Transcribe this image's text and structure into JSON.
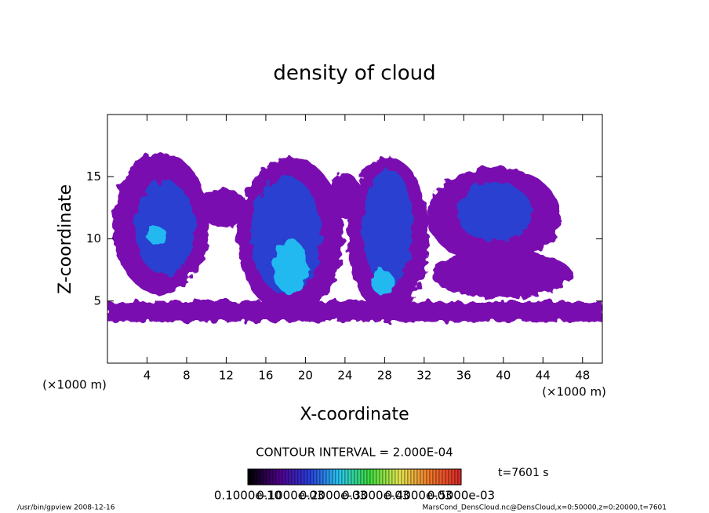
{
  "chart_data": {
    "type": "contour",
    "title": "density of cloud",
    "x_label": "X-coordinate",
    "y_label": "Z-coordinate",
    "x_unit": "(×1000 m)",
    "y_unit": "(×1000 m)",
    "xlim": [
      0,
      50
    ],
    "ylim": [
      0,
      20
    ],
    "xticks": [
      4,
      8,
      12,
      16,
      20,
      24,
      28,
      32,
      36,
      40,
      44,
      48
    ],
    "yticks": [
      5,
      10,
      15
    ],
    "contour_interval": "CONTOUR INTERVAL = 2.000E-04",
    "time": "t=7601 s",
    "colorbar_labels": [
      "0.1000e-10",
      "0.1000e-03",
      "0.2000e-03",
      "0.3000e-03",
      "0.4000e-03",
      "0.5000e-03"
    ],
    "footer_left": "/usr/bin/gpview  2008-12-16",
    "footer_right": "MarsCond_DensCloud.nc@DensCloud,x=0:50000,z=0:20000,t=7601"
  }
}
